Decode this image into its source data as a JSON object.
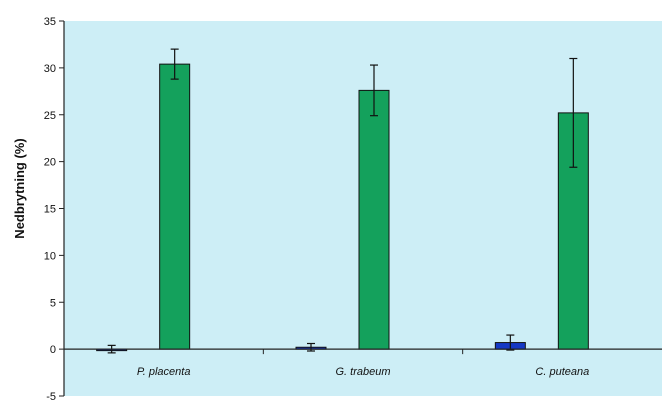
{
  "chart_data": {
    "type": "bar",
    "title": "",
    "xlabel": "",
    "ylabel": "Nedbrytning (%)",
    "ylim": [
      -5,
      35
    ],
    "yticks": [
      -5,
      0,
      5,
      10,
      15,
      20,
      25,
      30,
      35
    ],
    "categories": [
      "P. placenta",
      "G. trabeum",
      "C. puteana"
    ],
    "series": [
      {
        "color": "#1538c4",
        "values": [
          0.0,
          0.2,
          0.7
        ],
        "error": [
          0.4,
          0.4,
          0.8
        ]
      },
      {
        "color": "#14a15c",
        "values": [
          30.4,
          27.6,
          25.2
        ],
        "error": [
          1.6,
          2.7,
          5.8
        ]
      }
    ],
    "plot_background": "#cdeef6",
    "grid": false,
    "legend": "none"
  }
}
